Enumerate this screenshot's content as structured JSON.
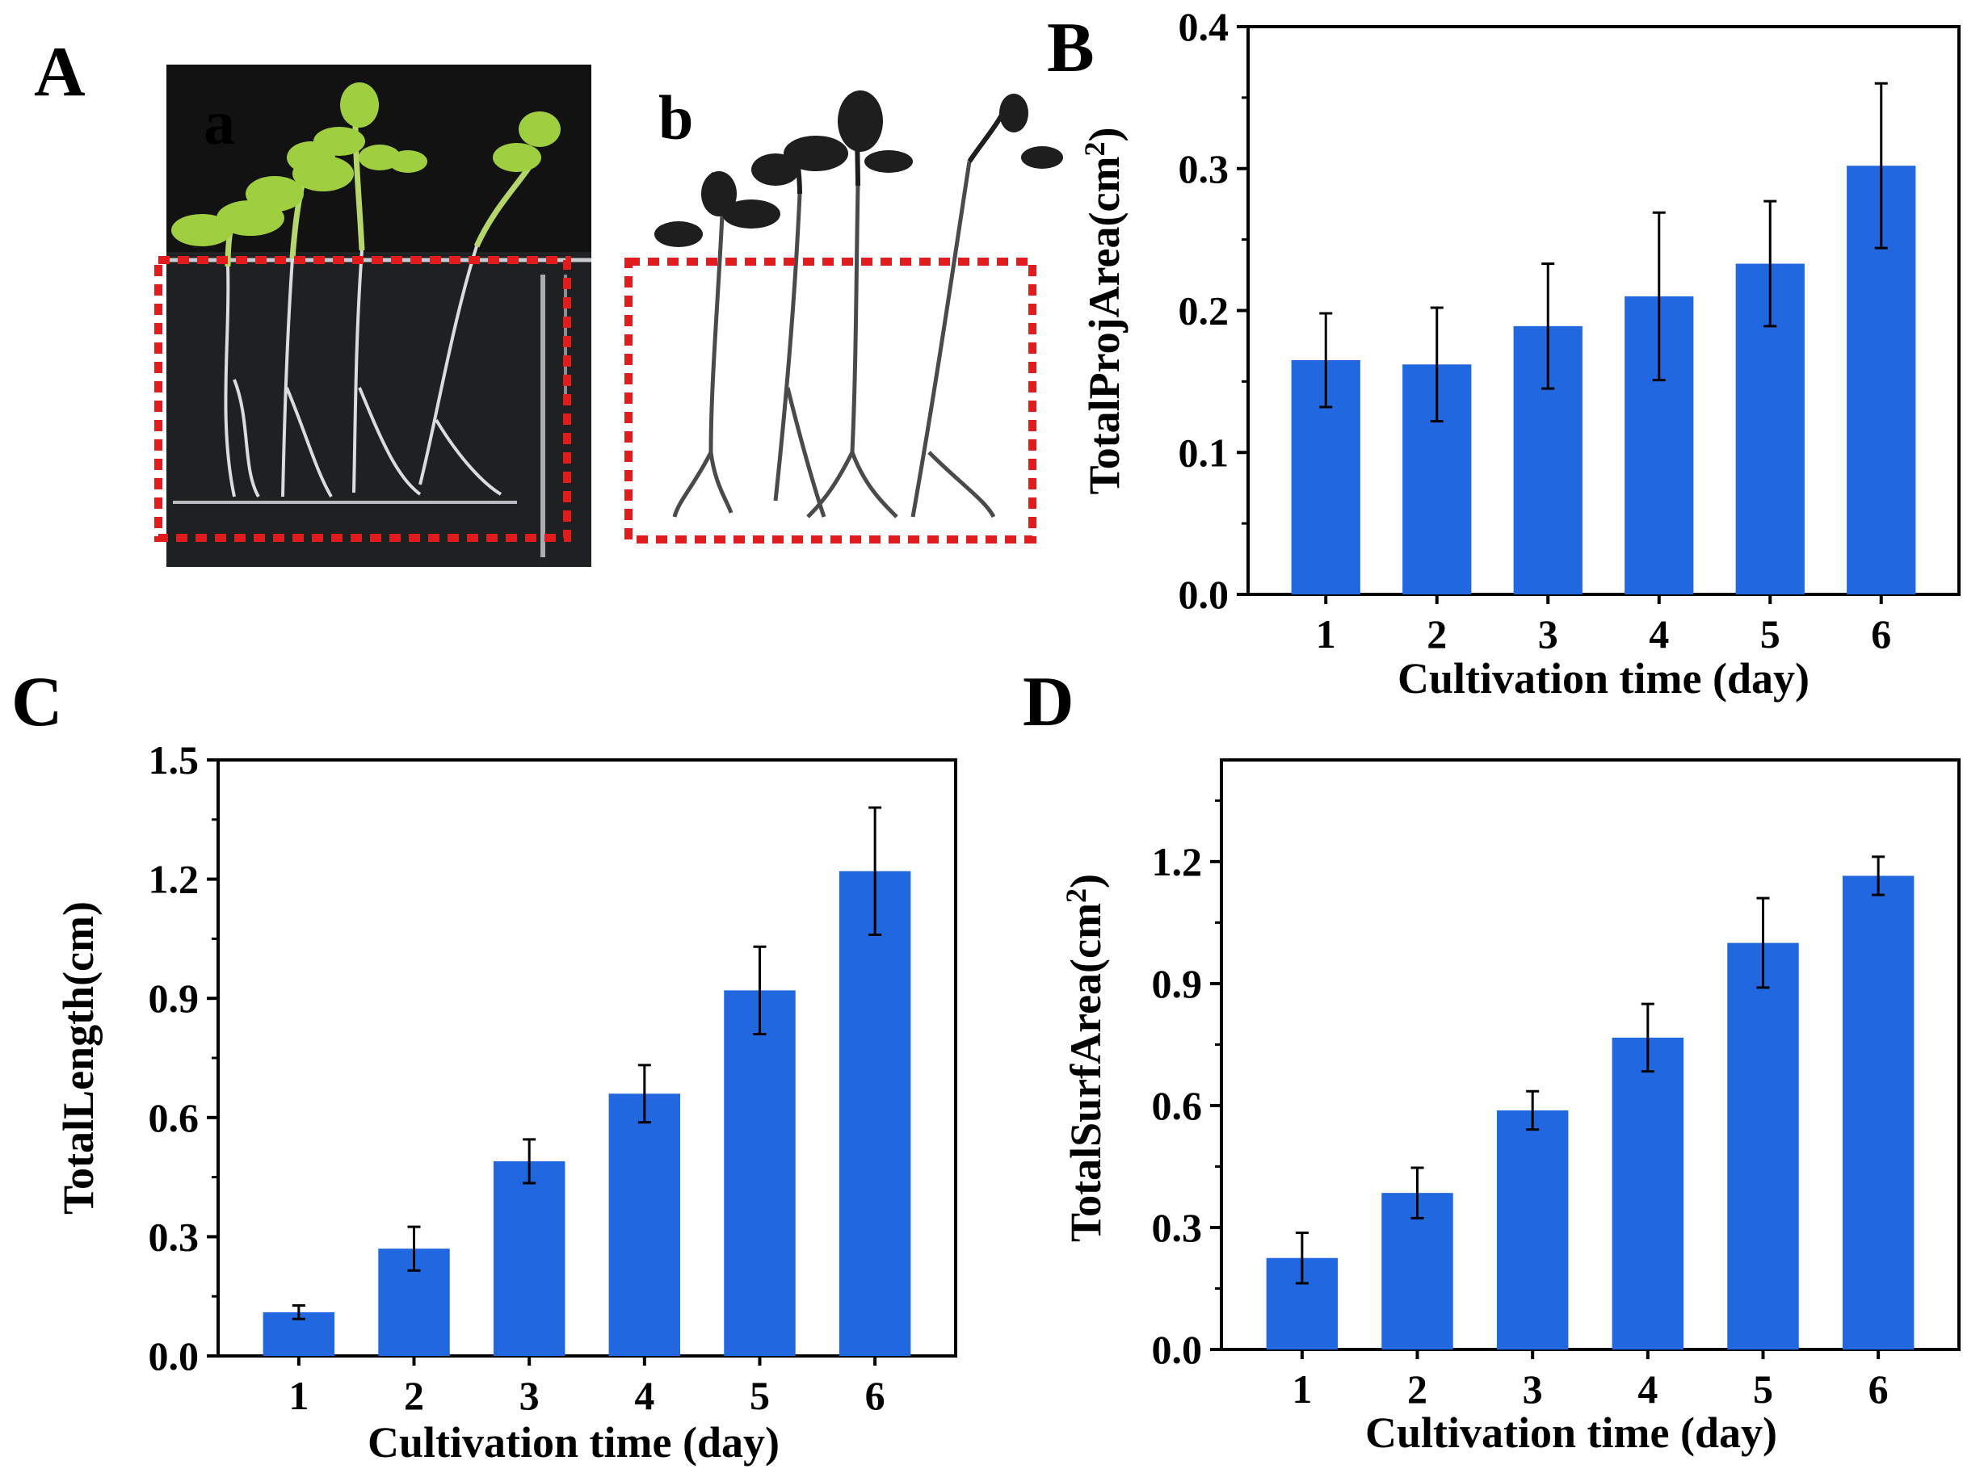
{
  "panels": {
    "A": "A",
    "B": "B",
    "C": "C",
    "D": "D",
    "sub_a": "a",
    "sub_b": "b"
  },
  "colors": {
    "bar": "#2167e0",
    "dashed_box": "#e11c1c",
    "photo_background": "#121212",
    "seedling_green": "#9fce40",
    "scan_ink": "#1e1e1e"
  },
  "chart_data": [
    {
      "panel": "B",
      "type": "bar",
      "categories": [
        "1",
        "2",
        "3",
        "4",
        "5",
        "6"
      ],
      "values": [
        0.165,
        0.162,
        0.189,
        0.21,
        0.233,
        0.302
      ],
      "errors": [
        0.033,
        0.04,
        0.044,
        0.059,
        0.044,
        0.058
      ],
      "xlabel": "Cultivation time (day)",
      "ylabel_main": "TotalProjArea(cm",
      "ylabel_sup": "2",
      "ylabel_end": ")",
      "ylim": [
        0,
        0.4
      ],
      "yticks": [
        "0.0",
        "0.1",
        "0.2",
        "0.3",
        "0.4"
      ]
    },
    {
      "panel": "C",
      "type": "bar",
      "categories": [
        "1",
        "2",
        "3",
        "4",
        "5",
        "6"
      ],
      "values": [
        0.11,
        0.27,
        0.49,
        0.66,
        0.92,
        1.22
      ],
      "errors": [
        0.017,
        0.055,
        0.055,
        0.072,
        0.11,
        0.16
      ],
      "xlabel": "Cultivation time (day)",
      "ylabel_main": "TotalLength(cm)",
      "ylabel_sup": "",
      "ylabel_end": "",
      "ylim": [
        0,
        1.5
      ],
      "yticks": [
        "0.0",
        "0.3",
        "0.6",
        "0.9",
        "1.2",
        "1.5"
      ]
    },
    {
      "panel": "D",
      "type": "bar",
      "categories": [
        "1",
        "2",
        "3",
        "4",
        "5",
        "6"
      ],
      "values": [
        0.225,
        0.385,
        0.588,
        0.767,
        1.0,
        1.165
      ],
      "errors": [
        0.062,
        0.062,
        0.047,
        0.083,
        0.11,
        0.047
      ],
      "xlabel": "Cultivation time (day)",
      "ylabel_main": "TotalSurfArea(cm",
      "ylabel_sup": "2",
      "ylabel_end": ")",
      "ylim": [
        0,
        1.45
      ],
      "yticks": [
        "0.0",
        "0.3",
        "0.6",
        "0.9",
        "1.2"
      ]
    }
  ]
}
